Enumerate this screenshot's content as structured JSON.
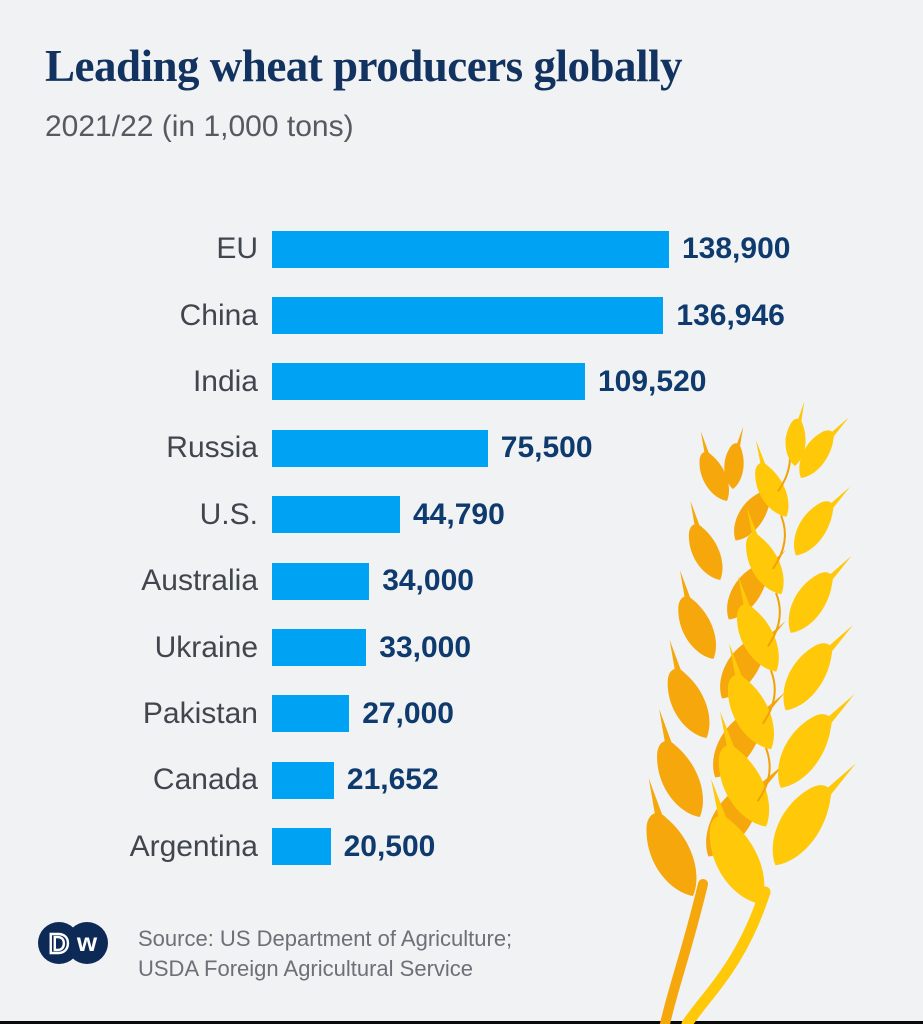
{
  "title": "Leading wheat producers globally",
  "subtitle": "2021/22 (in 1,000 tons)",
  "chart_data": {
    "type": "bar",
    "orientation": "horizontal",
    "title": "Leading wheat producers globally",
    "subtitle": "2021/22 (in 1,000 tons)",
    "unit": "1,000 tons",
    "categories": [
      "EU",
      "China",
      "India",
      "Russia",
      "U.S.",
      "Australia",
      "Ukraine",
      "Pakistan",
      "Canada",
      "Argentina"
    ],
    "values": [
      138900,
      136946,
      109520,
      75500,
      44790,
      34000,
      33000,
      27000,
      21652,
      20500
    ],
    "value_labels": [
      "138,900",
      "136,946",
      "109,520",
      "75,500",
      "44,790",
      "34,000",
      "33,000",
      "27,000",
      "21,652",
      "20,500"
    ],
    "xlim": [
      0,
      138900
    ],
    "grid": false,
    "legend": false,
    "bar_color": "#00a2f4"
  },
  "footer": {
    "source_line1": "Source: US Department of Agriculture;",
    "source_line2": "USDA Foreign Agricultural Service",
    "logo_left_letter": "D",
    "logo_right_letter": "w"
  },
  "colors": {
    "background": "#f0f2f4",
    "bar_blue": "#00a2f4",
    "title_navy": "#12325f",
    "value_navy": "#0e3a6e",
    "label_gray": "#41464e",
    "subtitle_gray": "#555a60",
    "source_gray": "#6b7177",
    "logo_navy": "#0d2a56",
    "wheat_amber": "#f5a70c",
    "wheat_yellow": "#ffc808",
    "bottom_rule_black": "#0a0a0a"
  }
}
